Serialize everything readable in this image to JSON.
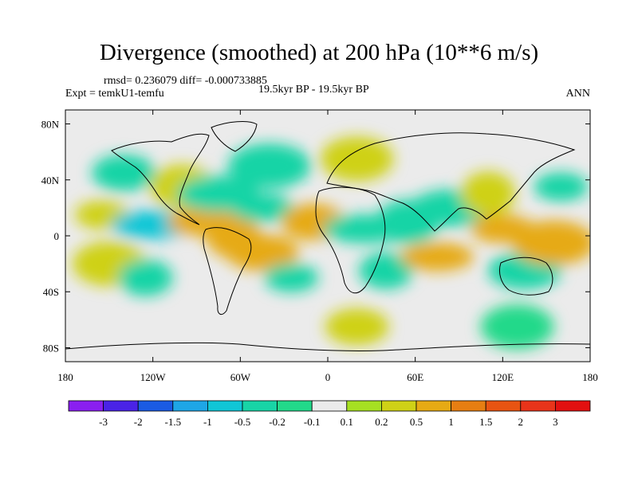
{
  "chart_data": {
    "type": "heatmap",
    "title": "Divergence (smoothed) at 200 hPa (10**6 m/s)",
    "stats": "rmsd= 0.236079 diff= -0.000733885",
    "experiment": "Expt = temkU1-temfu",
    "period": "19.5kyr BP - 19.5kyr BP",
    "season": "ANN",
    "x_ticks": [
      "180",
      "120W",
      "60W",
      "0",
      "60E",
      "120E",
      "180"
    ],
    "x_tick_values": [
      -180,
      -120,
      -60,
      0,
      60,
      120,
      180
    ],
    "y_ticks": [
      "80N",
      "40N",
      "0",
      "40S",
      "80S"
    ],
    "y_tick_values": [
      80,
      40,
      0,
      -40,
      -80
    ],
    "xlim": [
      -180,
      180
    ],
    "ylim": [
      -90,
      90
    ],
    "colorbar_labels": [
      "-3",
      "-2",
      "-1.5",
      "-1",
      "-0.5",
      "-0.2",
      "-0.1",
      "0.1",
      "0.2",
      "0.5",
      "1",
      "1.5",
      "2",
      "3"
    ],
    "colorbar_levels": [
      -3,
      -2,
      -1.5,
      -1,
      -0.5,
      -0.2,
      -0.1,
      0.1,
      0.2,
      0.5,
      1,
      1.5,
      2,
      3
    ],
    "colorbar_colors": [
      "#8a1ff0",
      "#4a23e6",
      "#1a5be3",
      "#1ea6e6",
      "#10c6d6",
      "#18d4a6",
      "#22d98a",
      "#ebebeb",
      "#a6e022",
      "#cfd116",
      "#e6aa14",
      "#e67e12",
      "#e85412",
      "#e8341a",
      "#e21010"
    ],
    "background_color": "#ebebeb",
    "regions": [
      {
        "lon": -155,
        "lat": 15,
        "value": 0.3
      },
      {
        "lon": -140,
        "lat": 45,
        "value": -0.3
      },
      {
        "lon": -150,
        "lat": -20,
        "value": 0.3
      },
      {
        "lon": -120,
        "lat": 8,
        "value": -0.6
      },
      {
        "lon": -125,
        "lat": -30,
        "value": -0.5
      },
      {
        "lon": -100,
        "lat": 35,
        "value": 0.3
      },
      {
        "lon": -85,
        "lat": 10,
        "value": 0.5
      },
      {
        "lon": -75,
        "lat": 30,
        "value": -0.4
      },
      {
        "lon": -65,
        "lat": 0,
        "value": 0.8
      },
      {
        "lon": -45,
        "lat": 20,
        "value": -0.5
      },
      {
        "lon": -45,
        "lat": -12,
        "value": 0.5
      },
      {
        "lon": -40,
        "lat": 50,
        "value": -0.3
      },
      {
        "lon": -25,
        "lat": -30,
        "value": -0.4
      },
      {
        "lon": -10,
        "lat": 10,
        "value": 0.6
      },
      {
        "lon": 20,
        "lat": 55,
        "value": 0.3
      },
      {
        "lon": 25,
        "lat": 5,
        "value": -0.4
      },
      {
        "lon": 40,
        "lat": -25,
        "value": -0.4
      },
      {
        "lon": 55,
        "lat": 10,
        "value": -0.4
      },
      {
        "lon": 75,
        "lat": -15,
        "value": 0.8
      },
      {
        "lon": 85,
        "lat": 20,
        "value": -0.3
      },
      {
        "lon": 110,
        "lat": 30,
        "value": 0.3
      },
      {
        "lon": 120,
        "lat": 5,
        "value": 0.9
      },
      {
        "lon": 135,
        "lat": -25,
        "value": -0.4
      },
      {
        "lon": 155,
        "lat": -5,
        "value": 0.6
      },
      {
        "lon": 160,
        "lat": 35,
        "value": -0.3
      },
      {
        "lon": 20,
        "lat": -65,
        "value": 0.2
      },
      {
        "lon": 130,
        "lat": -65,
        "value": -0.2
      }
    ]
  }
}
